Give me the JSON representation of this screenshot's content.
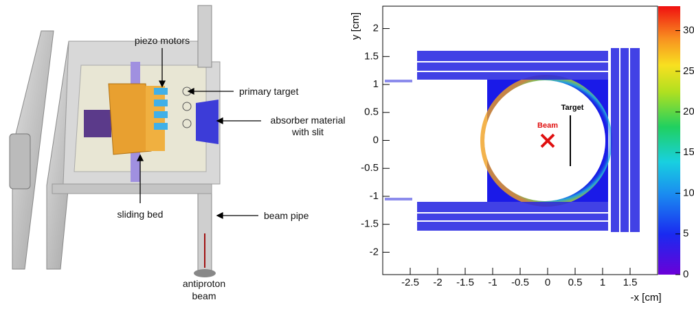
{
  "diagram": {
    "labels": {
      "piezo_motors": "piezo motors",
      "primary_target": "primary target",
      "absorber": [
        "absorber material",
        "with slit"
      ],
      "sliding_bed": "sliding bed",
      "beam_pipe": "beam pipe",
      "antiproton_beam": [
        "antiproton",
        "beam"
      ]
    }
  },
  "chart_data": {
    "type": "heatmap",
    "xlabel": "-x [cm]",
    "ylabel": "y [cm]",
    "xlim": [
      -3,
      2
    ],
    "ylim": [
      -2.4,
      2.4
    ],
    "xticks": [
      -2.5,
      -2,
      -1.5,
      -1,
      -0.5,
      0,
      0.5,
      1,
      1.5
    ],
    "yticks": [
      -2,
      -1.5,
      -1,
      -0.5,
      0,
      0.5,
      1,
      1.5,
      2
    ],
    "zlim": [
      0,
      33
    ],
    "zticks": [
      0,
      5,
      10,
      15,
      20,
      25,
      30
    ],
    "annotations": {
      "beam": "Beam",
      "target": "Target"
    }
  }
}
